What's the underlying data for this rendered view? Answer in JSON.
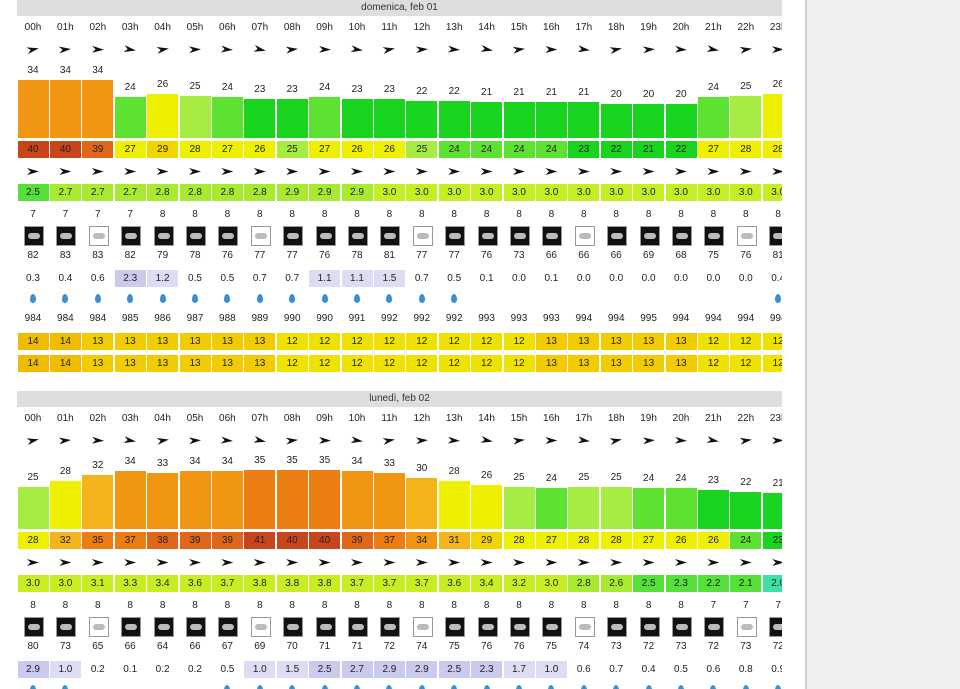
{
  "days": [
    {
      "title": "domenica, feb 01",
      "hours": [
        "00h",
        "01h",
        "02h",
        "03h",
        "04h",
        "05h",
        "06h",
        "07h",
        "08h",
        "09h",
        "10h",
        "11h",
        "12h",
        "13h",
        "14h",
        "15h",
        "16h",
        "17h",
        "18h",
        "19h",
        "20h",
        "21h",
        "22h",
        "23h"
      ],
      "bar_values": [
        34,
        34,
        34,
        24,
        26,
        25,
        24,
        23,
        23,
        24,
        23,
        23,
        22,
        22,
        21,
        21,
        21,
        21,
        20,
        20,
        20,
        24,
        25,
        26
      ],
      "box_values": [
        40,
        40,
        39,
        27,
        29,
        28,
        27,
        26,
        25,
        27,
        26,
        26,
        25,
        24,
        24,
        24,
        24,
        23,
        22,
        21,
        22,
        27,
        28,
        28
      ],
      "green_values": [
        "2.5",
        "2.7",
        "2.7",
        "2.7",
        "2.8",
        "2.8",
        "2.8",
        "2.8",
        "2.9",
        "2.9",
        "2.9",
        "3.0",
        "3.0",
        "3.0",
        "3.0",
        "3.0",
        "3.0",
        "3.0",
        "3.0",
        "3.0",
        "3.0",
        "3.0",
        "3.0",
        "3.0"
      ],
      "small_values": [
        7,
        7,
        7,
        7,
        8,
        8,
        8,
        8,
        8,
        8,
        8,
        8,
        8,
        8,
        8,
        8,
        8,
        8,
        8,
        8,
        8,
        8,
        8,
        8
      ],
      "humidity": [
        82,
        83,
        83,
        82,
        79,
        78,
        76,
        77,
        77,
        76,
        78,
        81,
        77,
        77,
        76,
        73,
        66,
        66,
        66,
        69,
        68,
        75,
        76,
        81
      ],
      "precip": [
        "0.3",
        "0.4",
        "0.6",
        "2.3",
        "1.2",
        "0.5",
        "0.5",
        "0.7",
        "0.7",
        "1.1",
        "1.1",
        "1.5",
        "0.7",
        "0.5",
        "0.1",
        "0.0",
        "0.1",
        "0.0",
        "0.0",
        "0.0",
        "0.0",
        "0.0",
        "0.0",
        "0.4"
      ],
      "pressure": [
        984,
        984,
        984,
        985,
        986,
        987,
        988,
        989,
        990,
        990,
        991,
        992,
        992,
        992,
        993,
        993,
        993,
        994,
        994,
        995,
        994,
        994,
        994,
        994
      ],
      "band1": [
        14,
        14,
        13,
        13,
        13,
        13,
        13,
        13,
        12,
        12,
        12,
        12,
        12,
        12,
        12,
        12,
        13,
        13,
        13,
        13,
        13,
        12,
        12,
        12
      ],
      "band2": [
        14,
        14,
        13,
        13,
        13,
        13,
        13,
        13,
        12,
        12,
        12,
        12,
        12,
        12,
        12,
        12,
        13,
        13,
        13,
        13,
        13,
        12,
        12,
        12
      ]
    },
    {
      "title": "lunedì, feb 02",
      "hours": [
        "00h",
        "01h",
        "02h",
        "03h",
        "04h",
        "05h",
        "06h",
        "07h",
        "08h",
        "09h",
        "10h",
        "11h",
        "12h",
        "13h",
        "14h",
        "15h",
        "16h",
        "17h",
        "18h",
        "19h",
        "20h",
        "21h",
        "22h",
        "23h"
      ],
      "bar_values": [
        25,
        28,
        32,
        34,
        33,
        34,
        34,
        35,
        35,
        35,
        34,
        33,
        30,
        28,
        26,
        25,
        24,
        25,
        25,
        24,
        24,
        23,
        22,
        21
      ],
      "box_values": [
        28,
        32,
        35,
        37,
        38,
        39,
        39,
        41,
        40,
        40,
        39,
        37,
        34,
        31,
        29,
        28,
        27,
        28,
        28,
        27,
        26,
        26,
        24,
        23
      ],
      "green_values": [
        "3.0",
        "3.0",
        "3.1",
        "3.3",
        "3.4",
        "3.6",
        "3.7",
        "3.8",
        "3.8",
        "3.8",
        "3.7",
        "3.7",
        "3.7",
        "3.6",
        "3.4",
        "3.2",
        "3.0",
        "2.8",
        "2.6",
        "2.5",
        "2.3",
        "2.2",
        "2.1",
        "2.0"
      ],
      "small_values": [
        8,
        8,
        8,
        8,
        8,
        8,
        8,
        8,
        8,
        8,
        8,
        8,
        8,
        8,
        8,
        8,
        8,
        8,
        8,
        8,
        8,
        7,
        7,
        7
      ],
      "humidity": [
        80,
        73,
        65,
        66,
        64,
        66,
        67,
        69,
        70,
        71,
        71,
        72,
        74,
        75,
        76,
        76,
        75,
        74,
        73,
        72,
        73,
        72,
        73,
        72
      ],
      "precip": [
        "2.9",
        "1.0",
        "0.2",
        "0.1",
        "0.2",
        "0.2",
        "0.5",
        "1.0",
        "1.5",
        "2.5",
        "2.7",
        "2.9",
        "2.9",
        "2.5",
        "2.3",
        "1.7",
        "1.0",
        "0.6",
        "0.7",
        "0.4",
        "0.5",
        "0.6",
        "0.8",
        "0.9"
      ]
    }
  ]
}
